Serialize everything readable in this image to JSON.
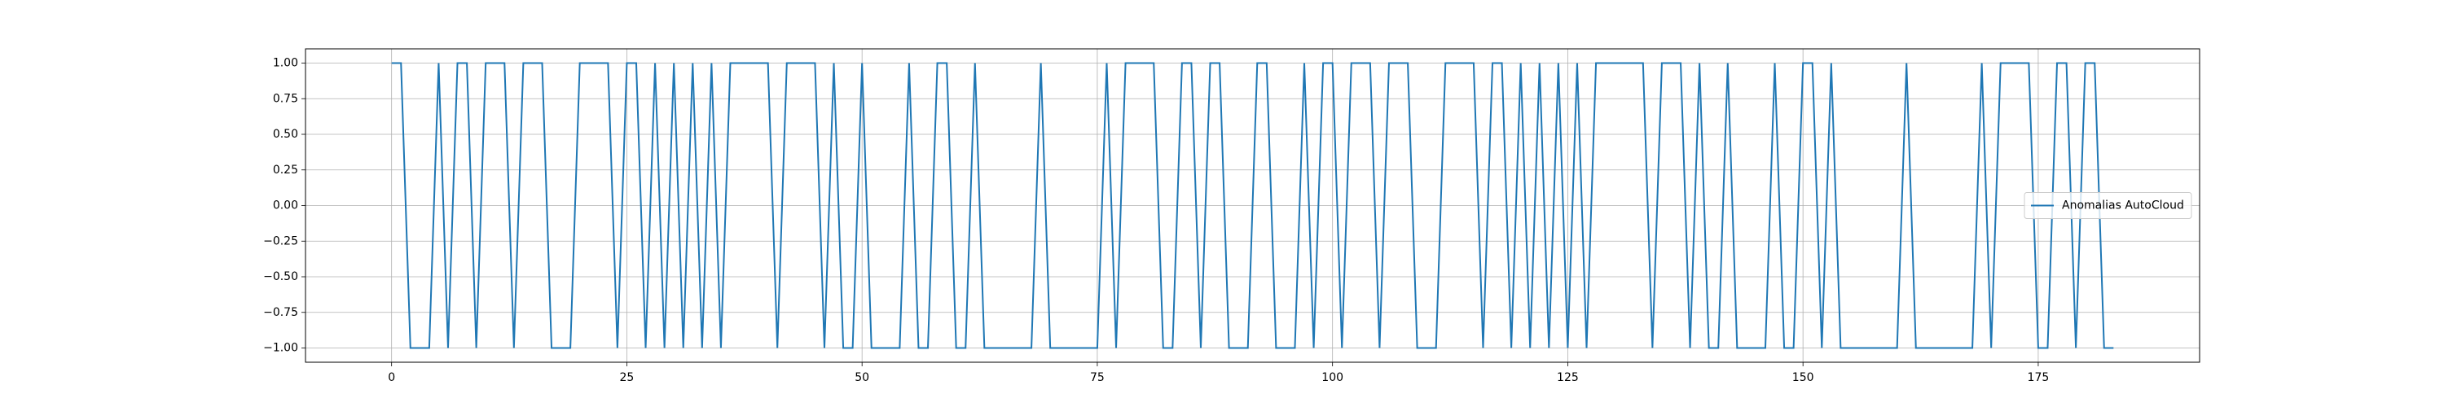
{
  "chart_data": {
    "type": "line",
    "x": [
      0,
      1,
      2,
      3,
      4,
      5,
      6,
      7,
      8,
      9,
      10,
      11,
      12,
      13,
      14,
      15,
      16,
      17,
      18,
      19,
      20,
      21,
      22,
      23,
      24,
      25,
      26,
      27,
      28,
      29,
      30,
      31,
      32,
      33,
      34,
      35,
      36,
      37,
      38,
      39,
      40,
      41,
      42,
      43,
      44,
      45,
      46,
      47,
      48,
      49,
      50,
      51,
      52,
      53,
      54,
      55,
      56,
      57,
      58,
      59,
      60,
      61,
      62,
      63,
      64,
      65,
      66,
      67,
      68,
      69,
      70,
      71,
      72,
      73,
      74,
      75,
      76,
      77,
      78,
      79,
      80,
      81,
      82,
      83,
      84,
      85,
      86,
      87,
      88,
      89,
      90,
      91,
      92,
      93,
      94,
      95,
      96,
      97,
      98,
      99,
      100,
      101,
      102,
      103,
      104,
      105,
      106,
      107,
      108,
      109,
      110,
      111,
      112,
      113,
      114,
      115,
      116,
      117,
      118,
      119,
      120,
      121,
      122,
      123,
      124,
      125,
      126,
      127,
      128,
      129,
      130,
      131,
      132,
      133,
      134,
      135,
      136,
      137,
      138,
      139,
      140,
      141,
      142,
      143,
      144,
      145,
      146,
      147,
      148,
      149,
      150,
      151,
      152,
      153,
      154,
      155,
      156,
      157,
      158,
      159,
      160,
      161,
      162,
      163,
      164,
      165,
      166,
      167,
      168,
      169,
      170,
      171,
      172,
      173,
      174,
      175,
      176,
      177,
      178,
      179,
      180,
      181,
      182,
      183
    ],
    "series": [
      {
        "name": "Anomalias AutoCloud",
        "color": "#1f77b4",
        "values": [
          1,
          1,
          -1,
          -1,
          -1,
          1,
          -1,
          1,
          1,
          -1,
          1,
          1,
          1,
          -1,
          1,
          1,
          1,
          -1,
          -1,
          -1,
          1,
          1,
          1,
          1,
          -1,
          1,
          1,
          -1,
          1,
          -1,
          1,
          -1,
          1,
          -1,
          1,
          -1,
          1,
          1,
          1,
          1,
          1,
          -1,
          1,
          1,
          1,
          1,
          -1,
          1,
          -1,
          -1,
          1,
          -1,
          -1,
          -1,
          -1,
          1,
          -1,
          -1,
          1,
          1,
          -1,
          -1,
          1,
          -1,
          -1,
          -1,
          -1,
          -1,
          -1,
          1,
          -1,
          -1,
          -1,
          -1,
          -1,
          -1,
          1,
          -1,
          1,
          1,
          1,
          1,
          -1,
          -1,
          1,
          1,
          -1,
          1,
          1,
          -1,
          -1,
          -1,
          1,
          1,
          -1,
          -1,
          -1,
          1,
          -1,
          1,
          1,
          -1,
          1,
          1,
          1,
          -1,
          1,
          1,
          1,
          -1,
          -1,
          -1,
          1,
          1,
          1,
          1,
          -1,
          1,
          1,
          -1,
          1,
          -1,
          1,
          -1,
          1,
          -1,
          1,
          -1,
          1,
          1,
          1,
          1,
          1,
          1,
          -1,
          1,
          1,
          1,
          -1,
          1,
          -1,
          -1,
          1,
          -1,
          -1,
          -1,
          -1,
          1,
          -1,
          -1,
          1,
          1,
          -1,
          1,
          -1,
          -1,
          -1,
          -1,
          -1,
          -1,
          -1,
          1,
          -1,
          -1,
          -1,
          -1,
          -1,
          -1,
          -1,
          1,
          -1,
          1,
          1,
          1,
          1,
          -1,
          -1,
          1,
          1,
          -1,
          1,
          1,
          -1,
          -1
        ]
      }
    ],
    "xlim": [
      -9.15,
      192.15
    ],
    "ylim": [
      -1.1,
      1.1
    ],
    "xticks": [
      0,
      25,
      50,
      75,
      100,
      125,
      150,
      175
    ],
    "yticks": [
      {
        "value": -1,
        "label": "−1.00"
      },
      {
        "value": -0.75,
        "label": "−0.75"
      },
      {
        "value": -0.5,
        "label": "−0.50"
      },
      {
        "value": -0.25,
        "label": "−0.25"
      },
      {
        "value": 0,
        "label": "0.00"
      },
      {
        "value": 0.25,
        "label": "0.25"
      },
      {
        "value": 0.5,
        "label": "0.50"
      },
      {
        "value": 0.75,
        "label": "0.75"
      },
      {
        "value": 1,
        "label": "1.00"
      }
    ],
    "grid": true,
    "legend": "right"
  }
}
